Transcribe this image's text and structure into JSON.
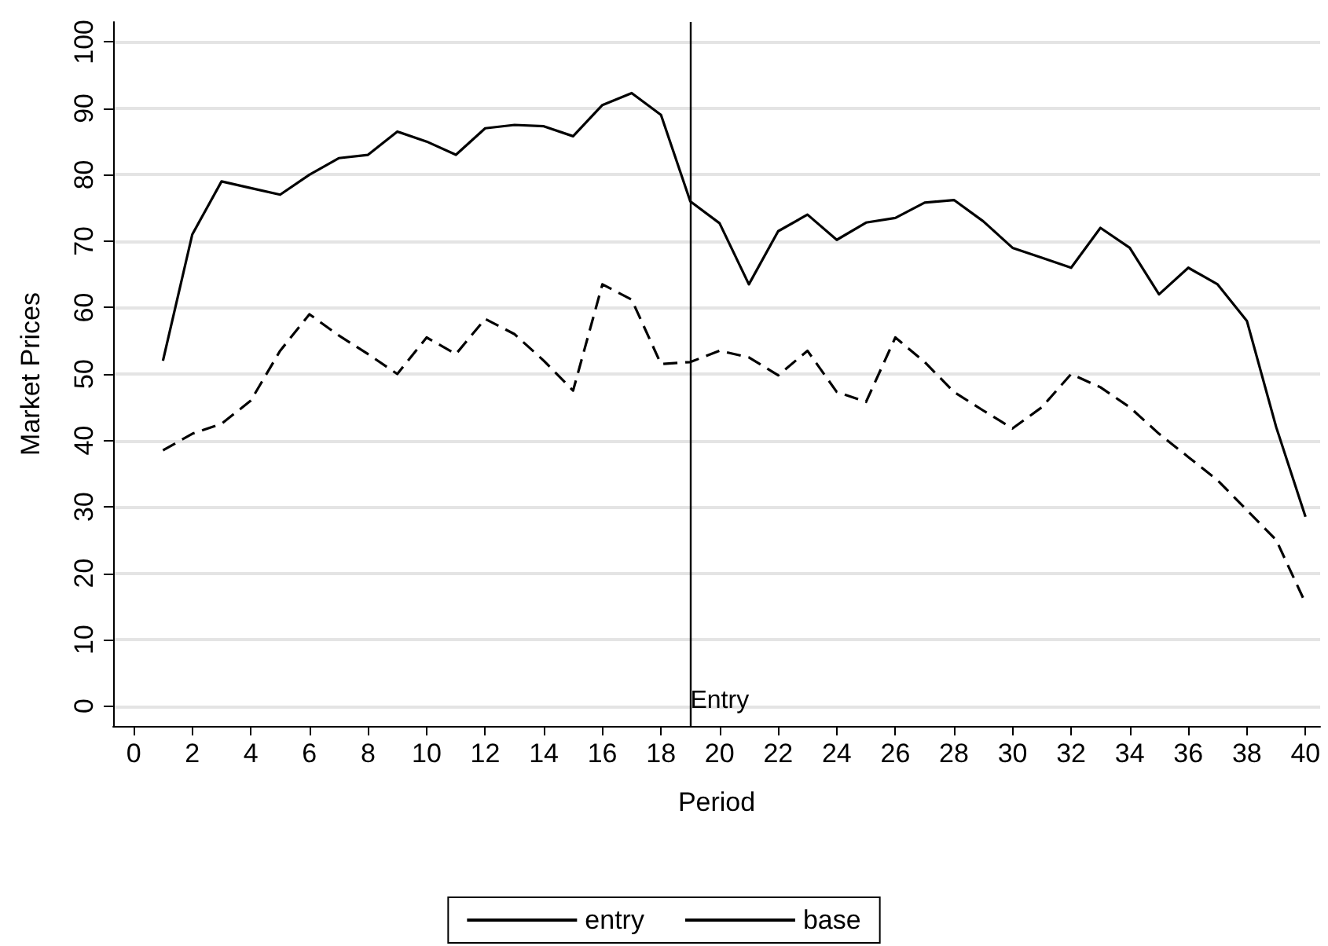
{
  "chart_data": {
    "type": "line",
    "xlabel": "Period",
    "ylabel": "Market Prices",
    "x": [
      1,
      2,
      3,
      4,
      5,
      6,
      7,
      8,
      9,
      10,
      11,
      12,
      13,
      14,
      15,
      16,
      17,
      18,
      19,
      20,
      21,
      22,
      23,
      24,
      25,
      26,
      27,
      28,
      29,
      30,
      31,
      32,
      33,
      34,
      35,
      36,
      37,
      38,
      39,
      40
    ],
    "series": [
      {
        "name": "entry",
        "color": "#000000",
        "line_style": "solid",
        "values": [
          52,
          71,
          79,
          78,
          77,
          80,
          82.5,
          83,
          86.5,
          85,
          83,
          87,
          87.5,
          87.3,
          85.8,
          90.5,
          92.3,
          89,
          76,
          72.7,
          63.5,
          71.5,
          74,
          70.2,
          72.8,
          73.5,
          75.8,
          76.2,
          73,
          69,
          67.5,
          66,
          72,
          69,
          62,
          66,
          63.5,
          58,
          42,
          28.5
        ]
      },
      {
        "name": "base",
        "color": "#000000",
        "line_style": "dashed",
        "values": [
          38.5,
          41,
          42.5,
          46,
          53.5,
          59,
          55.8,
          53,
          50,
          55.5,
          53,
          58.3,
          56,
          52,
          47.5,
          63.5,
          61.2,
          51.5,
          51.8,
          53.5,
          52.5,
          49.8,
          53.5,
          47.3,
          45.8,
          55.5,
          51.8,
          47.3,
          44.5,
          41.8,
          45,
          50,
          48,
          45,
          41,
          37.5,
          34,
          29.5,
          25,
          15.5
        ]
      }
    ],
    "xlim": [
      -0.7,
      40.5
    ],
    "xticks": [
      0,
      2,
      4,
      6,
      8,
      10,
      12,
      14,
      16,
      18,
      20,
      22,
      24,
      26,
      28,
      30,
      32,
      34,
      36,
      38,
      40
    ],
    "ylim": [
      -3,
      103
    ],
    "yticks": [
      0,
      10,
      20,
      30,
      40,
      50,
      60,
      70,
      80,
      90,
      100
    ],
    "ref_lines": [
      {
        "axis": "x",
        "value": 19,
        "label": "Entry",
        "color": "#000000"
      }
    ],
    "grid": "y",
    "legend": "bottom",
    "marker": "none"
  }
}
